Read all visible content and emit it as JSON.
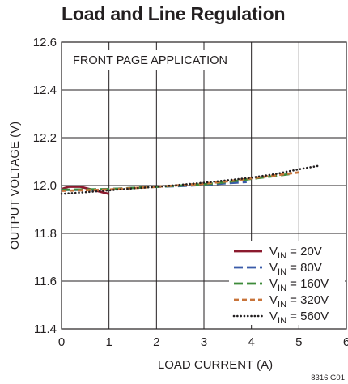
{
  "title": "Load and Line Regulation",
  "chart_data": {
    "type": "line",
    "xlabel": "LOAD CURRENT (A)",
    "ylabel": "OUTPUT VOLTAGE (V)",
    "xlim": [
      0,
      6
    ],
    "ylim": [
      11.4,
      12.6
    ],
    "xticks": [
      "0",
      "1",
      "2",
      "3",
      "4",
      "5",
      "6"
    ],
    "yticks": [
      "11.4",
      "11.6",
      "11.8",
      "12.0",
      "12.2",
      "12.4",
      "12.6"
    ],
    "grid": true,
    "annotation": "FRONT PAGE APPLICATION",
    "figure_code": "8316 G01",
    "legend_position": "bottom-right",
    "series": [
      {
        "name_prefix": "V",
        "name_sub": "IN",
        "name_suffix": " = 20V",
        "color": "#8b1a2e",
        "style": "solid",
        "x": [
          0,
          0.15,
          0.4,
          0.6,
          0.8,
          1.0
        ],
        "y": [
          11.985,
          11.995,
          11.995,
          11.985,
          11.975,
          11.965
        ]
      },
      {
        "name_prefix": "V",
        "name_sub": "IN",
        "name_suffix": " = 80V",
        "color": "#3a5ba9",
        "style": "dash",
        "x": [
          0,
          0.5,
          1.0,
          1.5,
          2.0,
          2.5,
          3.0,
          3.5,
          3.9
        ],
        "y": [
          11.982,
          11.982,
          11.985,
          11.99,
          11.995,
          11.998,
          12.003,
          12.01,
          12.015
        ]
      },
      {
        "name_prefix": "V",
        "name_sub": "IN",
        "name_suffix": " = 160V",
        "color": "#3e8b3a",
        "style": "dash",
        "x": [
          0,
          1.0,
          2.0,
          3.0,
          3.5,
          4.0,
          4.5,
          4.8
        ],
        "y": [
          11.982,
          11.985,
          11.995,
          12.005,
          12.015,
          12.028,
          12.04,
          12.048
        ]
      },
      {
        "name_prefix": "V",
        "name_sub": "IN",
        "name_suffix": " = 320V",
        "color": "#c8743a",
        "style": "shortdash",
        "x": [
          0,
          1.0,
          2.0,
          3.0,
          3.5,
          4.0,
          4.5,
          5.0
        ],
        "y": [
          11.978,
          11.983,
          11.995,
          12.008,
          12.018,
          12.03,
          12.043,
          12.055
        ]
      },
      {
        "name_prefix": "V",
        "name_sub": "IN",
        "name_suffix": " = 560V",
        "color": "#231f20",
        "style": "dot",
        "x": [
          0,
          0.5,
          1.0,
          1.5,
          2.0,
          2.5,
          3.0,
          3.5,
          4.0,
          4.5,
          5.0,
          5.4
        ],
        "y": [
          11.965,
          11.972,
          11.98,
          11.988,
          11.995,
          12.003,
          12.012,
          12.022,
          12.033,
          12.048,
          12.068,
          12.082
        ]
      }
    ]
  }
}
